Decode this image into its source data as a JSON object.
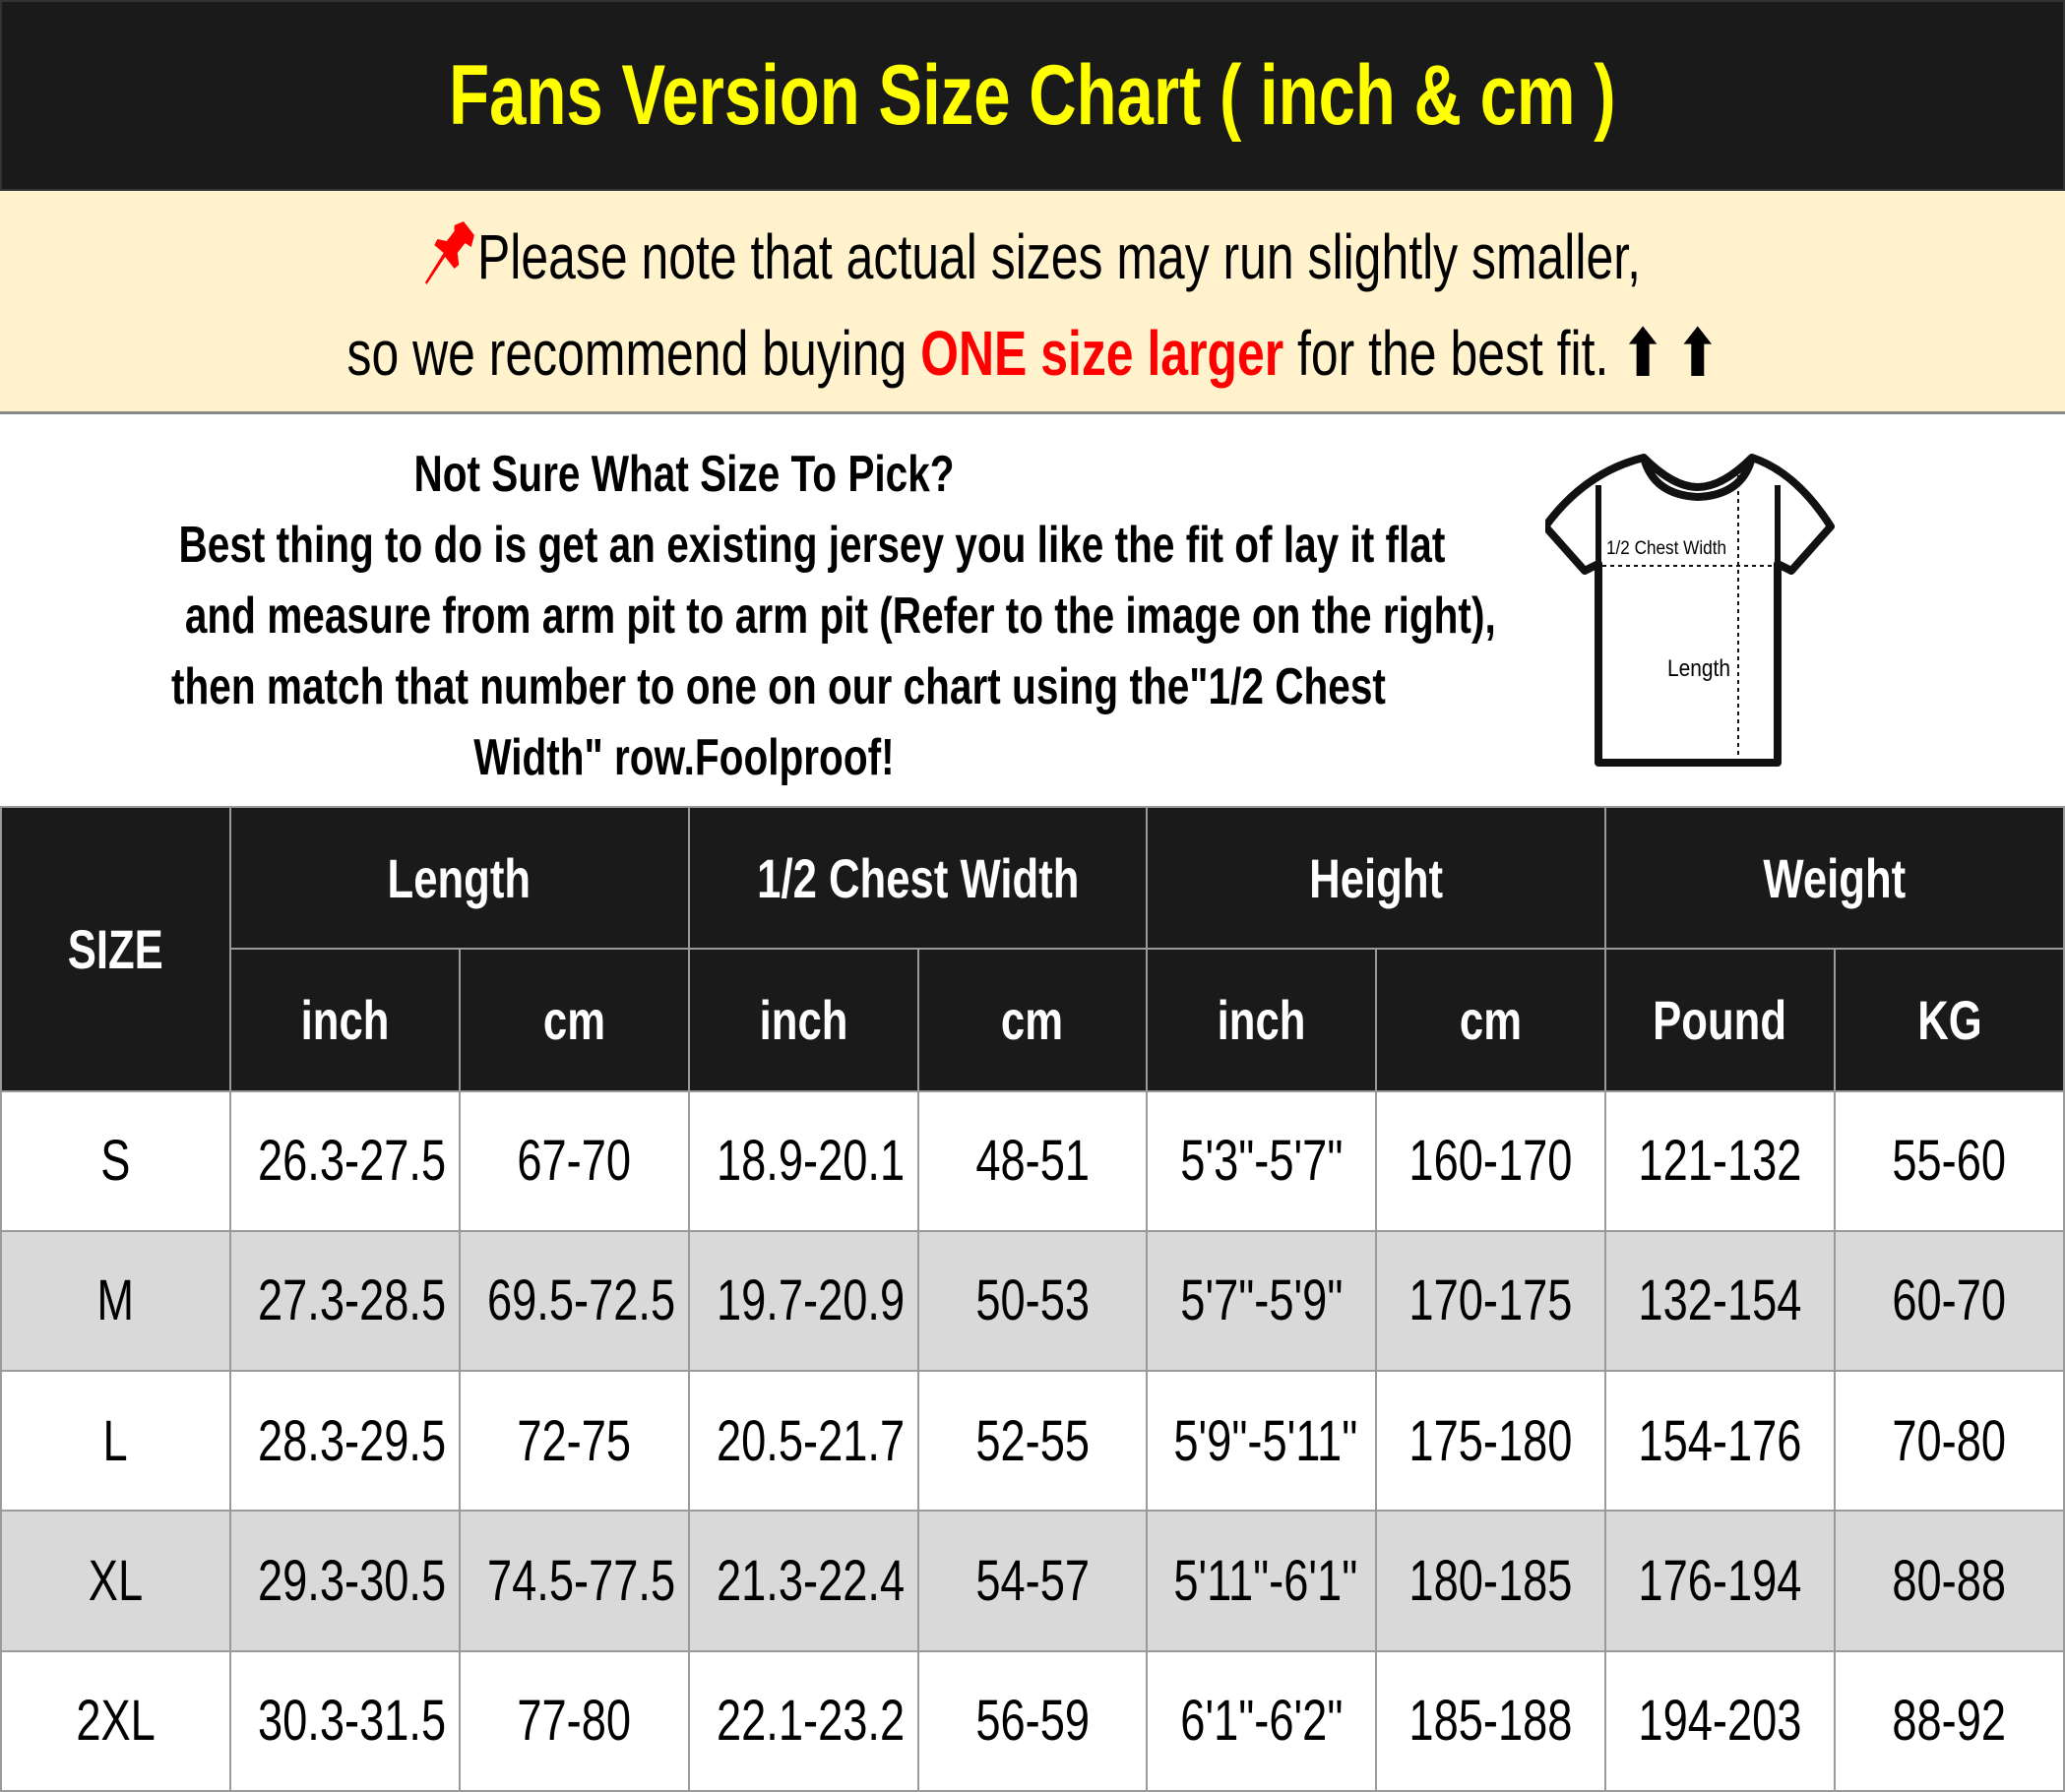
{
  "title": "Fans Version Size Chart ( inch & cm )",
  "notice": {
    "icon": "pushpin-icon",
    "line1": "Please note that actual sizes may run slightly smaller,",
    "line2_before": "so we recommend buying ",
    "line2_highlight": "ONE size larger",
    "line2_after": " for the best fit.",
    "arrows": "⬆ ⬆",
    "highlight_color": "#ff0000"
  },
  "info": {
    "heading": "Not Sure What Size To Pick?",
    "lines": [
      "Best thing to do is get an existing jersey you like the fit of lay it flat",
      "and measure from arm pit to arm pit (Refer to the image on the right),",
      "then match that number to one on our chart using the\"1/2 Chest",
      "Width\" row.Foolproof!"
    ],
    "diagram": {
      "chest_label": "1/2 Chest Width",
      "length_label": "Length"
    }
  },
  "table": {
    "size_header": "SIZE",
    "groups": [
      "Length",
      "1/2 Chest Width",
      "Height",
      "Weight"
    ],
    "units": [
      "inch",
      "cm",
      "inch",
      "cm",
      "inch",
      "cm",
      "Pound",
      "KG"
    ],
    "rows": [
      [
        "S",
        "26.3-27.5",
        "67-70",
        "18.9-20.1",
        "48-51",
        "5'3\"-5'7\"",
        "160-170",
        "121-132",
        "55-60"
      ],
      [
        "M",
        "27.3-28.5",
        "69.5-72.5",
        "19.7-20.9",
        "50-53",
        "5'7\"-5'9\"",
        "170-175",
        "132-154",
        "60-70"
      ],
      [
        "L",
        "28.3-29.5",
        "72-75",
        "20.5-21.7",
        "52-55",
        "5'9\"-5'11\"",
        "175-180",
        "154-176",
        "70-80"
      ],
      [
        "XL",
        "29.3-30.5",
        "74.5-77.5",
        "21.3-22.4",
        "54-57",
        "5'11\"-6'1\"",
        "180-185",
        "176-194",
        "80-88"
      ],
      [
        "2XL",
        "30.3-31.5",
        "77-80",
        "22.1-23.2",
        "56-59",
        "6'1\"-6'2\"",
        "185-188",
        "194-203",
        "88-92"
      ]
    ]
  },
  "colors": {
    "title": "#ffff00",
    "header_bg": "#1a1a1a",
    "notice_bg": "#fff2cc",
    "alt_row": "#d9d9d9"
  }
}
